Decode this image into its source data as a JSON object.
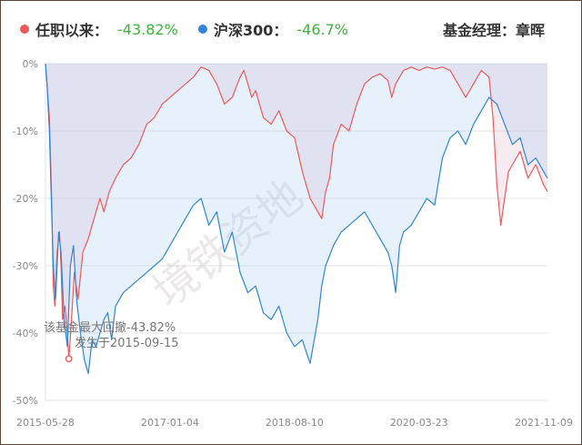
{
  "legend": {
    "fund": {
      "label": "任职以来：",
      "value": "-43.82%",
      "color": "#ee5a5a"
    },
    "index": {
      "label": "沪深300：",
      "value": "-46.7%",
      "color": "#2f86d8"
    },
    "manager": "基金经理：章晖"
  },
  "annotation": {
    "line1": "该基金最大回撤-43.82%",
    "line2": "发生于2015-09-15"
  },
  "watermark": "境铁资地",
  "chart_data": {
    "type": "line",
    "title": "",
    "xlabel": "",
    "ylabel": "",
    "ylim": [
      -50,
      0
    ],
    "xlim": [
      0,
      6.45
    ],
    "yticks": [
      0,
      -10,
      -20,
      -30,
      -40,
      -50
    ],
    "ytick_labels": [
      "0%",
      "-10%",
      "-20%",
      "-30%",
      "-40%",
      "-50%"
    ],
    "xticks": [
      0,
      1.6,
      3.2,
      4.8,
      6.45
    ],
    "xtick_labels": [
      "2015-05-28",
      "2017-01-04",
      "2018-08-10",
      "2020-03-23",
      "2021-11-09"
    ],
    "max_drawdown_point": {
      "x": 0.3,
      "y": -43.82
    },
    "series": [
      {
        "name": "任职以来",
        "color": "#ee5a5a",
        "x": [
          0,
          0.02,
          0.05,
          0.08,
          0.1,
          0.12,
          0.15,
          0.18,
          0.2,
          0.22,
          0.25,
          0.28,
          0.3,
          0.33,
          0.37,
          0.42,
          0.48,
          0.55,
          0.6,
          0.65,
          0.7,
          0.75,
          0.82,
          0.9,
          1.0,
          1.1,
          1.2,
          1.3,
          1.4,
          1.5,
          1.6,
          1.7,
          1.8,
          1.9,
          2.0,
          2.1,
          2.2,
          2.3,
          2.4,
          2.5,
          2.55,
          2.6,
          2.65,
          2.7,
          2.75,
          2.8,
          2.9,
          3.0,
          3.1,
          3.2,
          3.3,
          3.4,
          3.5,
          3.55,
          3.6,
          3.65,
          3.7,
          3.8,
          3.9,
          4.0,
          4.1,
          4.2,
          4.3,
          4.4,
          4.45,
          4.5,
          4.55,
          4.6,
          4.7,
          4.8,
          4.9,
          5.0,
          5.1,
          5.2,
          5.3,
          5.4,
          5.5,
          5.6,
          5.7,
          5.75,
          5.8,
          5.85,
          5.9,
          5.95,
          6.0,
          6.1,
          6.2,
          6.3,
          6.4,
          6.45
        ],
        "values": [
          0,
          -3,
          -8,
          -20,
          -33,
          -36,
          -28,
          -25,
          -30,
          -38,
          -36,
          -40,
          -43.8,
          -39,
          -31,
          -35,
          -28,
          -26,
          -24,
          -22,
          -20,
          -22,
          -19,
          -17,
          -15,
          -14,
          -12,
          -9,
          -8,
          -6,
          -5,
          -4,
          -3,
          -2,
          -0.5,
          -1,
          -3,
          -6,
          -5,
          -2,
          -1,
          -3,
          -5,
          -4,
          -6,
          -8,
          -9,
          -7,
          -10,
          -11,
          -16,
          -20,
          -22,
          -23,
          -19,
          -17,
          -12,
          -9,
          -10,
          -6,
          -3,
          -2,
          -1.5,
          -2.5,
          -5,
          -3,
          -2,
          -1,
          -0.5,
          -1,
          -0.5,
          -0.8,
          -0.5,
          -1,
          -3,
          -5,
          -3,
          -1,
          -2,
          -8,
          -18,
          -24,
          -20,
          -16,
          -15,
          -13,
          -17,
          -15,
          -18,
          -19
        ]
      },
      {
        "name": "沪深300",
        "color": "#2f86d8",
        "x": [
          0,
          0.02,
          0.05,
          0.08,
          0.1,
          0.13,
          0.17,
          0.2,
          0.24,
          0.28,
          0.32,
          0.36,
          0.4,
          0.45,
          0.5,
          0.55,
          0.6,
          0.65,
          0.7,
          0.75,
          0.8,
          0.85,
          0.9,
          1.0,
          1.1,
          1.2,
          1.3,
          1.4,
          1.5,
          1.6,
          1.7,
          1.8,
          1.9,
          2.0,
          2.1,
          2.2,
          2.3,
          2.4,
          2.5,
          2.6,
          2.7,
          2.8,
          2.9,
          3.0,
          3.1,
          3.2,
          3.3,
          3.4,
          3.5,
          3.55,
          3.6,
          3.7,
          3.8,
          3.9,
          4.0,
          4.1,
          4.2,
          4.3,
          4.4,
          4.45,
          4.5,
          4.55,
          4.6,
          4.7,
          4.8,
          4.9,
          5.0,
          5.1,
          5.2,
          5.3,
          5.4,
          5.5,
          5.6,
          5.7,
          5.8,
          5.9,
          6.0,
          6.1,
          6.2,
          6.3,
          6.4,
          6.45
        ],
        "values": [
          0,
          -3,
          -10,
          -22,
          -30,
          -35,
          -25,
          -28,
          -38,
          -42,
          -30,
          -27,
          -35,
          -40,
          -44,
          -46,
          -41,
          -42,
          -40,
          -38,
          -37,
          -41,
          -36,
          -34,
          -33,
          -32,
          -31,
          -30,
          -29,
          -27,
          -25,
          -23,
          -21,
          -20,
          -24,
          -22,
          -28,
          -25,
          -31,
          -34,
          -33,
          -37,
          -38,
          -36,
          -40,
          -42,
          -41,
          -44.5,
          -38,
          -33,
          -30,
          -27,
          -25,
          -24,
          -23,
          -22,
          -24,
          -26,
          -28,
          -30,
          -34,
          -27,
          -25,
          -24,
          -22,
          -20,
          -21,
          -14,
          -11,
          -10,
          -12,
          -9,
          -7,
          -5,
          -6,
          -9,
          -12,
          -11,
          -15,
          -14,
          -16,
          -17
        ]
      }
    ]
  }
}
